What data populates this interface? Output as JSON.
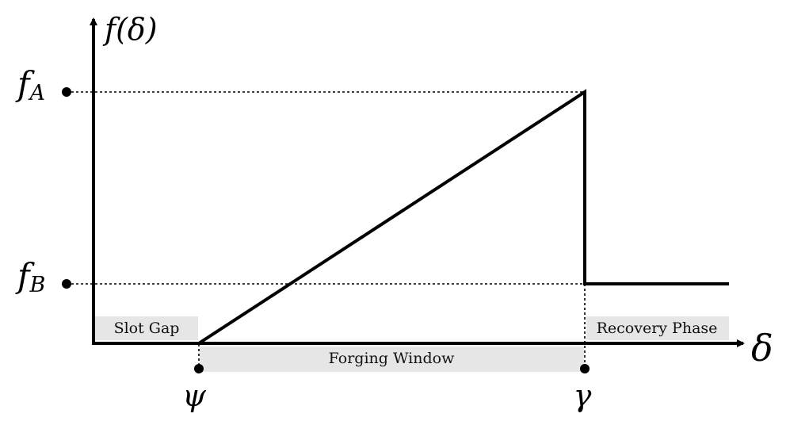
{
  "axes": {
    "x_label": "δ",
    "y_label": "f(δ)"
  },
  "y_ticks": {
    "fA_base": "f",
    "fA_sub": "A",
    "fB_base": "f",
    "fB_sub": "B"
  },
  "x_ticks": {
    "psi": "ψ",
    "gamma": "γ"
  },
  "regions": {
    "slot_gap": "Slot Gap",
    "forging_window": "Forging Window",
    "recovery_phase": "Recovery Phase"
  },
  "colors": {
    "curve": "#000000",
    "region_fill": "#e6e6e6",
    "guide": "#000000"
  }
}
